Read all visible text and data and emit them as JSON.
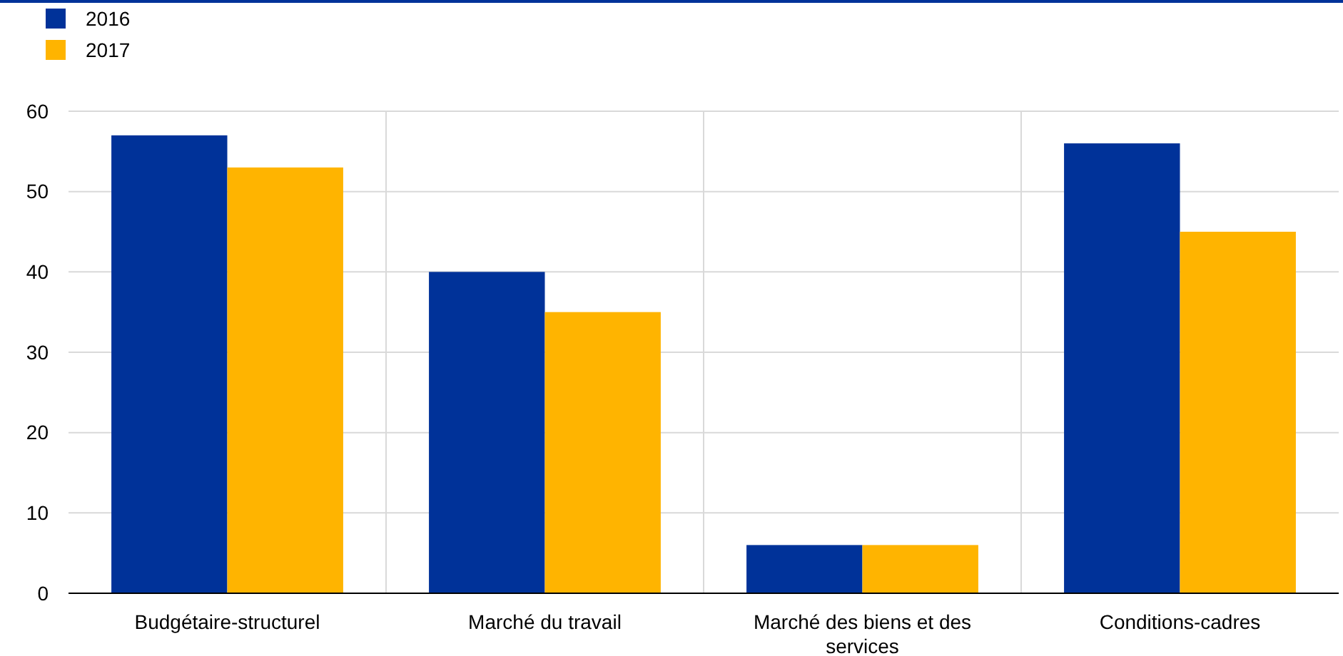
{
  "chart_data": {
    "type": "bar",
    "categories": [
      "Budgétaire-structurel",
      "Marché du travail",
      "Marché des biens et des services",
      "Conditions-cadres"
    ],
    "series": [
      {
        "name": "2016",
        "color": "#003299",
        "values": [
          57,
          40,
          6,
          56
        ]
      },
      {
        "name": "2017",
        "color": "#ffb400",
        "values": [
          53,
          35,
          6,
          45
        ]
      }
    ],
    "ylim": [
      0,
      60
    ],
    "yticks": [
      0,
      10,
      20,
      30,
      40,
      50,
      60
    ],
    "grid": true,
    "legend": "top left"
  }
}
